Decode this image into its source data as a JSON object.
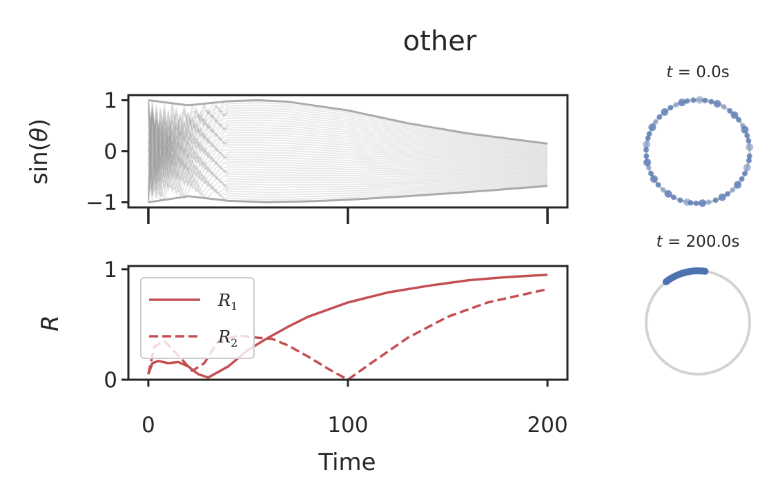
{
  "title": "other",
  "chart_data": [
    {
      "type": "line",
      "ylabel_prefix": "sin(",
      "ylabel_var": "θ",
      "ylabel_suffix": ")",
      "xlim": [
        -10,
        210
      ],
      "ylim": [
        -1.1,
        1.1
      ],
      "yticks": [
        "1",
        "0",
        "−1"
      ],
      "ytick_values": [
        1,
        0,
        -1
      ],
      "xtick_values": [
        0,
        100,
        200
      ],
      "series_color": "#999999",
      "envelope_upper": {
        "x": [
          0,
          20,
          40,
          55,
          70,
          100,
          130,
          160,
          200
        ],
        "y": [
          1.0,
          0.9,
          0.98,
          1.0,
          0.97,
          0.8,
          0.55,
          0.35,
          0.15
        ]
      },
      "envelope_lower": {
        "x": [
          0,
          20,
          40,
          60,
          80,
          100,
          130,
          160,
          200
        ],
        "y": [
          -1.0,
          -0.88,
          -0.97,
          -1.0,
          -0.98,
          -0.95,
          -0.88,
          -0.8,
          -0.68
        ]
      }
    },
    {
      "type": "line",
      "ylabel": "R",
      "xlabel": "Time",
      "xlim": [
        -10,
        210
      ],
      "ylim": [
        0,
        1.03
      ],
      "yticks": [
        "1",
        "0"
      ],
      "ytick_values": [
        1,
        0
      ],
      "xticks": [
        "0",
        "100",
        "200"
      ],
      "xtick_values": [
        0,
        100,
        200
      ],
      "legend_position": "top-left",
      "series_color": "#c44e52",
      "series": [
        {
          "name": "R",
          "name_sub": "1",
          "style": "solid",
          "x": [
            0,
            2,
            5,
            10,
            15,
            20,
            25,
            30,
            40,
            50,
            60,
            70,
            80,
            100,
            120,
            140,
            160,
            180,
            200
          ],
          "y": [
            0.05,
            0.15,
            0.17,
            0.15,
            0.16,
            0.12,
            0.05,
            0.02,
            0.12,
            0.27,
            0.38,
            0.48,
            0.57,
            0.7,
            0.79,
            0.85,
            0.9,
            0.93,
            0.95
          ]
        },
        {
          "name": "R",
          "name_sub": "2",
          "style": "dashed",
          "x": [
            0,
            3,
            8,
            15,
            22,
            28,
            35,
            45,
            55,
            62,
            70,
            80,
            90,
            100,
            110,
            130,
            150,
            170,
            200
          ],
          "y": [
            0.05,
            0.3,
            0.35,
            0.22,
            0.08,
            0.15,
            0.35,
            0.4,
            0.38,
            0.37,
            0.31,
            0.21,
            0.1,
            0.0,
            0.13,
            0.38,
            0.57,
            0.7,
            0.82
          ]
        }
      ]
    },
    {
      "type": "scatter",
      "label_var": "t",
      "label_eq": " = ",
      "label_value": "0.0s",
      "point_color": "#4c72b0",
      "circle_color": "#d3d3d3",
      "angles_deg": [
        5,
        12,
        18,
        25,
        30,
        38,
        45,
        52,
        60,
        68,
        75,
        82,
        88,
        95,
        102,
        108,
        115,
        122,
        130,
        138,
        145,
        152,
        160,
        165,
        172,
        178,
        185,
        192,
        198,
        205,
        212,
        220,
        228,
        235,
        242,
        250,
        258,
        262,
        268,
        275,
        282,
        290,
        298,
        305,
        312,
        320,
        328,
        335,
        342,
        350,
        355
      ]
    },
    {
      "type": "scatter",
      "label_var": "t",
      "label_eq": " = ",
      "label_value": "200.0s",
      "point_color": "#4c72b0",
      "circle_color": "#d3d3d3",
      "arc_deg": [
        82,
        128
      ]
    }
  ]
}
